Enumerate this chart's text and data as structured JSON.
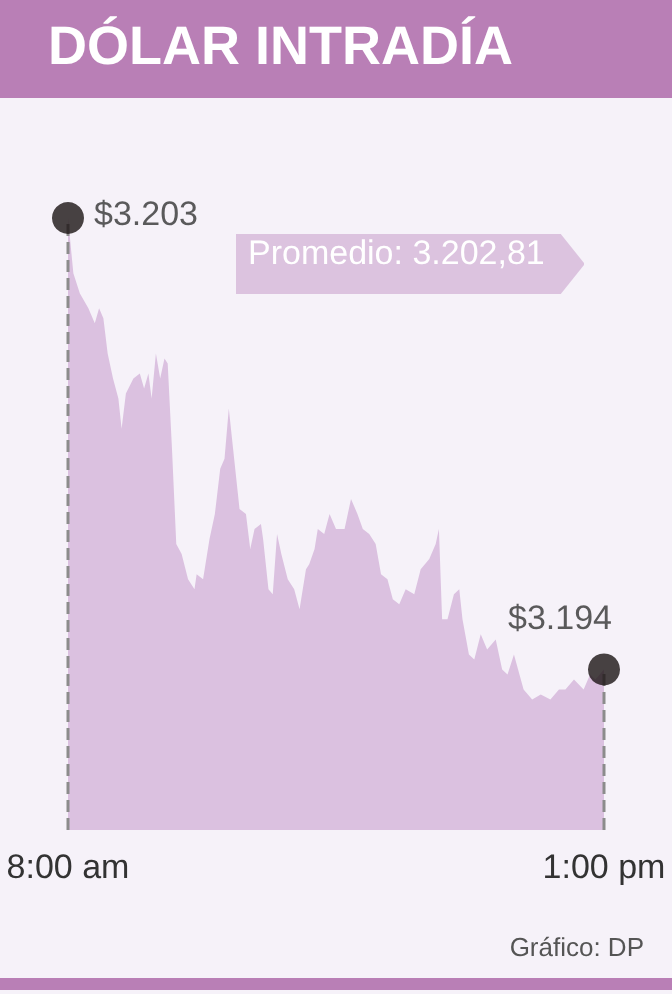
{
  "chart_data": {
    "type": "area",
    "title": "DÓLAR INTRADÍA",
    "xlim": [
      8,
      13
    ],
    "xticks": [
      {
        "value": 8,
        "label": "8:00 am"
      },
      {
        "value": 13,
        "label": "1:00 pm"
      }
    ],
    "ylim": [
      3190.8,
      3203
    ],
    "tick_labels": "x",
    "series": [
      {
        "color": "#dbc1e0",
        "x": [
          8,
          8.05,
          8.11,
          8.19,
          8.25,
          8.29,
          8.33,
          8.37,
          8.42,
          8.47,
          8.5,
          8.54,
          8.61,
          8.67,
          8.71,
          8.75,
          8.78,
          8.82,
          8.86,
          8.9,
          8.93,
          8.97,
          9.01,
          9.06,
          9.12,
          9.18,
          9.2,
          9.26,
          9.32,
          9.37,
          9.42,
          9.46,
          9.5,
          9.54,
          9.6,
          9.66,
          9.7,
          9.74,
          9.8,
          9.82,
          9.87,
          9.91,
          9.95,
          9.99,
          10.05,
          10.11,
          10.16,
          10.22,
          10.25,
          10.3,
          10.33,
          10.39,
          10.44,
          10.5,
          10.58,
          10.64,
          10.7,
          10.75,
          10.81,
          10.87,
          10.92,
          10.98,
          11.03,
          11.09,
          11.15,
          11.23,
          11.29,
          11.37,
          11.43,
          11.46,
          11.49,
          11.54,
          11.6,
          11.65,
          11.68,
          11.74,
          11.79,
          11.85,
          11.91,
          11.99,
          12.05,
          12.1,
          12.16,
          12.25,
          12.33,
          12.41,
          12.5,
          12.58,
          12.64,
          12.72,
          12.81,
          12.87,
          12.92,
          13
        ],
        "values": [
          3203,
          3201.9,
          3201.5,
          3201.2,
          3200.9,
          3201.2,
          3201,
          3200.3,
          3199.8,
          3199.4,
          3198.8,
          3199.5,
          3199.8,
          3199.9,
          3199.6,
          3199.9,
          3199.4,
          3200.3,
          3199.8,
          3200.2,
          3200.1,
          3198.4,
          3196.5,
          3196.3,
          3195.8,
          3195.6,
          3195.9,
          3195.8,
          3196.6,
          3197.1,
          3198,
          3198.2,
          3199.2,
          3198.4,
          3197.2,
          3197.1,
          3196.4,
          3196.8,
          3196.9,
          3196.6,
          3195.6,
          3195.5,
          3196.7,
          3196.3,
          3195.8,
          3195.6,
          3195.2,
          3196,
          3196.1,
          3196.4,
          3196.8,
          3196.7,
          3197.1,
          3196.8,
          3196.8,
          3197.4,
          3197.1,
          3196.8,
          3196.7,
          3196.5,
          3195.9,
          3195.8,
          3195.4,
          3195.3,
          3195.6,
          3195.5,
          3196,
          3196.2,
          3196.5,
          3196.8,
          3195,
          3195,
          3195.5,
          3195.6,
          3195,
          3194.3,
          3194.2,
          3194.7,
          3194.4,
          3194.6,
          3194,
          3193.9,
          3194.3,
          3193.6,
          3193.4,
          3193.5,
          3193.4,
          3193.6,
          3193.6,
          3193.8,
          3193.6,
          3193.9,
          3193.8,
          3194
        ]
      },
      {
        "type": "scatter",
        "color": "#1c1414",
        "marker": "circle",
        "x": [
          8,
          13
        ],
        "values": [
          3203,
          3194
        ],
        "value_labels": [
          "$3.203",
          "$3.194"
        ]
      }
    ],
    "ref_lines": [
      {
        "axis": "x",
        "value": 8,
        "color": "#8c8c8c",
        "line_style": "dashed"
      },
      {
        "axis": "x",
        "value": 13,
        "color": "#8c8c8c",
        "line_style": "dashed"
      }
    ],
    "annotations": [
      "Promedio: 3.202,81",
      "Gráfico: DP"
    ]
  }
}
